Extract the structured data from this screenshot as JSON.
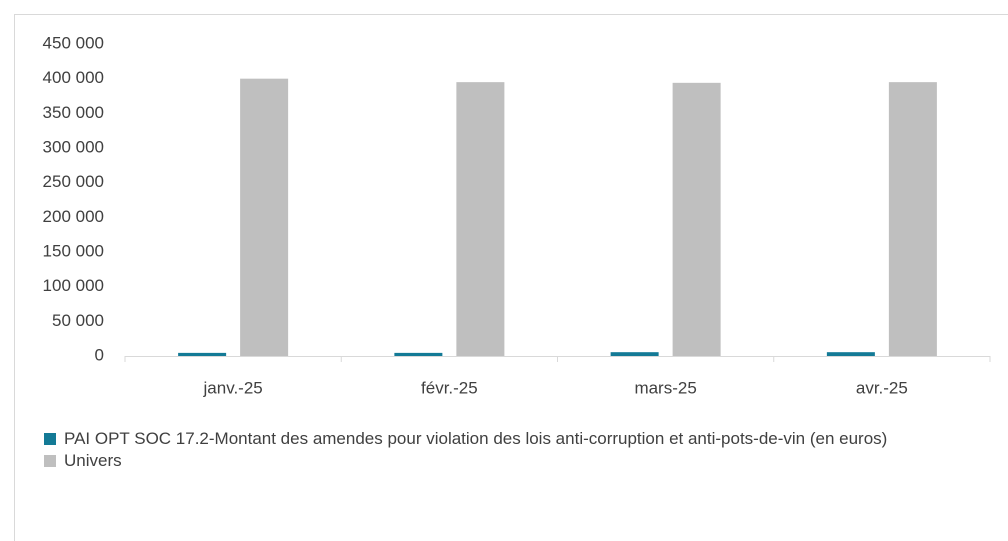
{
  "chart_data": {
    "type": "bar",
    "categories": [
      "janv.-25",
      "févr.-25",
      "mars-25",
      "avr.-25"
    ],
    "series": [
      {
        "name": "PAI OPT SOC 17.2-Montant des amendes pour violation des lois anti-corruption et anti-pots-de-vin (en euros)",
        "color": "#137a96",
        "values": [
          4500,
          4500,
          5500,
          5500
        ]
      },
      {
        "name": "Univers",
        "color": "#bfbfbf",
        "values": [
          400000,
          395000,
          394000,
          395000
        ]
      }
    ],
    "ylim": [
      0,
      450000
    ],
    "yticks": [
      0,
      {
        "value": 50000,
        "label": "50 000"
      },
      {
        "value": 100000,
        "label": "100 000"
      },
      {
        "value": 150000,
        "label": "150 000"
      },
      {
        "value": 200000,
        "label": "200 000"
      },
      {
        "value": 250000,
        "label": "250 000"
      },
      {
        "value": 300000,
        "label": "300 000"
      },
      {
        "value": 350000,
        "label": "350 000"
      },
      {
        "value": 400000,
        "label": "400 000"
      },
      {
        "value": 450000,
        "label": "450 000"
      }
    ],
    "grid": false,
    "legend": "bottom"
  }
}
